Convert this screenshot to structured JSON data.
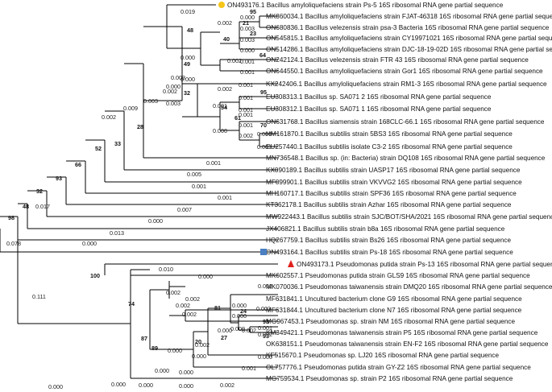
{
  "taxa": [
    "ON493176.1 Bacillus amyloliquefaciens strain Ps-5 16S ribosomal RNA gene partial sequence",
    "MK860034.1 Bacillus amyloliquefaciens strain FJAT-46318 16S ribosomal RNA gene partial sequence",
    "ON680836.1 Bacillus velezensis strain psa-3 Bacteria 16S ribosomal RNA gene partial sequence",
    "ON545815.1 Bacillus amyloliquefaciens strain CY19971021 16S ribosomal RNA gene partial sequence",
    "ON514286.1 Bacillus amyloliquefaciens strain DJC-18-19-02D 16S ribosomal RNA gene partial sequence",
    "ON242124.1 Bacillus velezensis strain FTR 43 16S ribosomal RNA gene partial sequence",
    "ON644550.1 Bacillus amyloliquefaciens strain Gor1 16S ribosomal RNA gene partial sequence",
    "KX242406.1 Bacillus amyloliquefaciens strain RM1-3 16S ribosomal RNA gene partial sequence",
    "EU308313.1 Bacillus sp. SA071 2 16S ribosomal RNA gene partial sequence",
    "EU308312.1 Bacillus sp. SA071 1 16S ribosomal RNA gene partial sequence",
    "ON631768.1 Bacillus siamensis strain 168CLC-66.1 16S ribosomal RNA gene partial sequence",
    "HM161870.1 Bacillus subtilis strain 5BS3 16S ribosomal RNA gene partial sequence",
    "EU257440.1 Bacillus subtilis isolate C3-2 16S ribosomal RNA gene partial sequence",
    "MN736548.1 Bacillus sp. (in: Bacteria) strain DQ108 16S ribosomal RNA gene partial sequence",
    "KX090189.1 Bacillus subtilis strain UASP17 16S ribosomal RNA gene partial sequence",
    "MF099901.1 Bacillus subtilis strain VKVVG2 16S ribosomal RNA gene partial sequence",
    "MH160717.1 Bacillus subtilis strain SPF36 16S ribosomal RNA gene partial sequence",
    "KT362178.1 Bacillus subtilis strain Azhar 16S ribosomal RNA gene partial sequence",
    "MW922443.1 Bacillus subtilis strain SJC/BOT/SHA/2021 16S ribosomal RNA gene partial sequence",
    "JX406821.1 Bacillus subtilis strain b8a 16S ribosomal RNA gene partial sequence",
    "HQ267759.1 Bacillus subtilis strain Bs26 16S ribosomal RNA gene partial sequence",
    "ON493164.1 Bacillus subtilis strain Ps-18 16S ribosomal RNA gene partial sequence",
    "ON493173.1 Pseudomonas putida strain Ps-13 16S ribosomal RNA gene partial sequence",
    "MK602557.1 Pseudomonas putida strain GLS9 16S ribosomal RNA gene partial sequence",
    "MK070036.1 Pseudomonas taiwanensis strain DMQ20 16S ribosomal RNA gene partial sequence",
    "MF631841.1 Uncultured bacterium clone G9 16S ribosomal RNA gene partial sequence",
    "MF631844.1 Uncultured bacterium clone N7 16S ribosomal RNA gene partial sequence",
    "MG967453.1 Pseudomonas sp. strain NM 16S ribosomal RNA gene partial sequence",
    "KM349421.1 Pseudomonas taiwanensis strain P5 16S ribosomal RNA gene partial sequence",
    "OK638151.1 Pseudomonas taiwanensis strain EN-F2 16S ribosomal RNA gene partial sequence",
    "KF515670.1 Pseudomonas sp. LJ20 16S ribosomal RNA gene partial sequence",
    "OL757776.1 Pseudomonas putida strain GY-Z2 16S ribosomal RNA gene partial sequence",
    "MG759534.1 Pseudomonas sp. strain P2 16S ribosomal RNA gene partial sequence"
  ],
  "markers": [
    {
      "taxon": 0,
      "shape": "circle",
      "color": "#f5c518"
    },
    {
      "taxon": 21,
      "shape": "square",
      "color": "#4a7fc1"
    },
    {
      "taxon": 22,
      "shape": "triangle",
      "color": "#e0201b"
    }
  ],
  "bootstrap": [
    "95",
    "21",
    "23",
    "40",
    "64",
    "48",
    "49",
    "32",
    "95",
    "54",
    "61",
    "70",
    "28",
    "33",
    "52",
    "66",
    "93",
    "32",
    "48",
    "98",
    "100",
    "74",
    "87",
    "89",
    "93",
    "24",
    "93",
    "81",
    "27",
    "20"
  ],
  "branch_lengths": [
    "0.019",
    "0.000",
    "0.003",
    "0.002",
    "0.003",
    "0.000",
    "0.002",
    "0.001",
    "0.001",
    "0.000",
    "0.000",
    "0.001",
    "0.001",
    "0.001",
    "0.002",
    "0.000",
    "0.001",
    "0.001",
    "0.001",
    "0.001",
    "0.000",
    "0.002",
    "0.000",
    "0.003",
    "0.001",
    "0.003",
    "0.005",
    "0.002",
    "0.001",
    "0.003",
    "0.001",
    "0.009",
    "0.007",
    "0.002",
    "0.000",
    "0.013",
    "0.017",
    "0.000",
    "0.078",
    "0.111",
    "0.010",
    "0.000",
    "0.002",
    "0.000",
    "0.000",
    "0.002",
    "0.002",
    "0.001",
    "0.002",
    "0.002",
    "0.003",
    "0.000",
    "0.002",
    "0.000",
    "0.000",
    "0.002",
    "0.001",
    "0.002",
    "0.000",
    "0.000",
    "0.000",
    "0.000",
    "0.000",
    "0.000",
    "0.000",
    "0.000",
    "0.002"
  ]
}
